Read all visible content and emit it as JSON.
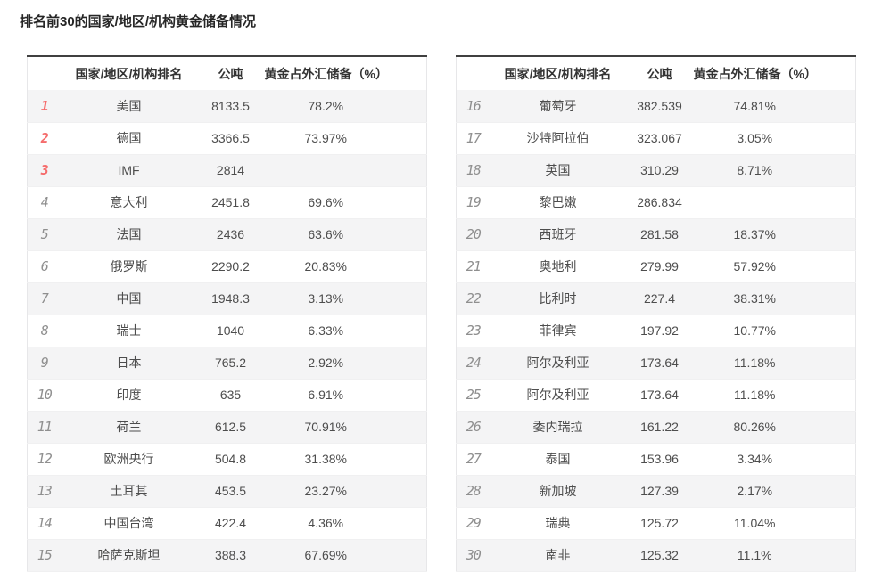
{
  "page_title": "排名前30的国家/地区/机构黄金储备情况",
  "colors": {
    "rank_top3_red": "#f56c6c",
    "rank_gray": "#8f8f8f",
    "row_stripe": "#f4f4f5",
    "table_top_border": "#404040",
    "table_outer_border": "#e7e7e9",
    "header_text": "#333333",
    "cell_text": "#4d4d4d"
  },
  "chart_data": {
    "type": "table",
    "title": "排名前30的国家/地区/机构黄金储备情况",
    "columns": [
      "国家/地区/机构排名",
      "公吨",
      "黄金占外汇储备（%）"
    ],
    "tables": [
      {
        "rows": [
          {
            "rank": 1,
            "name": "美国",
            "tons": "8133.5",
            "pct": "78.2%"
          },
          {
            "rank": 2,
            "name": "德国",
            "tons": "3366.5",
            "pct": "73.97%"
          },
          {
            "rank": 3,
            "name": "IMF",
            "tons": "2814",
            "pct": ""
          },
          {
            "rank": 4,
            "name": "意大利",
            "tons": "2451.8",
            "pct": "69.6%"
          },
          {
            "rank": 5,
            "name": "法国",
            "tons": "2436",
            "pct": "63.6%"
          },
          {
            "rank": 6,
            "name": "俄罗斯",
            "tons": "2290.2",
            "pct": "20.83%"
          },
          {
            "rank": 7,
            "name": "中国",
            "tons": "1948.3",
            "pct": "3.13%"
          },
          {
            "rank": 8,
            "name": "瑞士",
            "tons": "1040",
            "pct": "6.33%"
          },
          {
            "rank": 9,
            "name": "日本",
            "tons": "765.2",
            "pct": "2.92%"
          },
          {
            "rank": 10,
            "name": "印度",
            "tons": "635",
            "pct": "6.91%"
          },
          {
            "rank": 11,
            "name": "荷兰",
            "tons": "612.5",
            "pct": "70.91%"
          },
          {
            "rank": 12,
            "name": "欧洲央行",
            "tons": "504.8",
            "pct": "31.38%"
          },
          {
            "rank": 13,
            "name": "土耳其",
            "tons": "453.5",
            "pct": "23.27%"
          },
          {
            "rank": 14,
            "name": "中国台湾",
            "tons": "422.4",
            "pct": "4.36%"
          },
          {
            "rank": 15,
            "name": "哈萨克斯坦",
            "tons": "388.3",
            "pct": "67.69%"
          }
        ]
      },
      {
        "rows": [
          {
            "rank": 16,
            "name": "葡萄牙",
            "tons": "382.539",
            "pct": "74.81%"
          },
          {
            "rank": 17,
            "name": "沙特阿拉伯",
            "tons": "323.067",
            "pct": "3.05%"
          },
          {
            "rank": 18,
            "name": "英国",
            "tons": "310.29",
            "pct": "8.71%"
          },
          {
            "rank": 19,
            "name": "黎巴嫩",
            "tons": "286.834",
            "pct": ""
          },
          {
            "rank": 20,
            "name": "西班牙",
            "tons": "281.58",
            "pct": "18.37%"
          },
          {
            "rank": 21,
            "name": "奥地利",
            "tons": "279.99",
            "pct": "57.92%"
          },
          {
            "rank": 22,
            "name": "比利时",
            "tons": "227.4",
            "pct": "38.31%"
          },
          {
            "rank": 23,
            "name": "菲律宾",
            "tons": "197.92",
            "pct": "10.77%"
          },
          {
            "rank": 24,
            "name": "阿尔及利亚",
            "tons": "173.64",
            "pct": "11.18%"
          },
          {
            "rank": 25,
            "name": "阿尔及利亚",
            "tons": "173.64",
            "pct": "11.18%"
          },
          {
            "rank": 26,
            "name": "委内瑞拉",
            "tons": "161.22",
            "pct": "80.26%"
          },
          {
            "rank": 27,
            "name": "泰国",
            "tons": "153.96",
            "pct": "3.34%"
          },
          {
            "rank": 28,
            "name": "新加坡",
            "tons": "127.39",
            "pct": "2.17%"
          },
          {
            "rank": 29,
            "name": "瑞典",
            "tons": "125.72",
            "pct": "11.04%"
          },
          {
            "rank": 30,
            "name": "南非",
            "tons": "125.32",
            "pct": "11.1%"
          }
        ]
      }
    ]
  }
}
